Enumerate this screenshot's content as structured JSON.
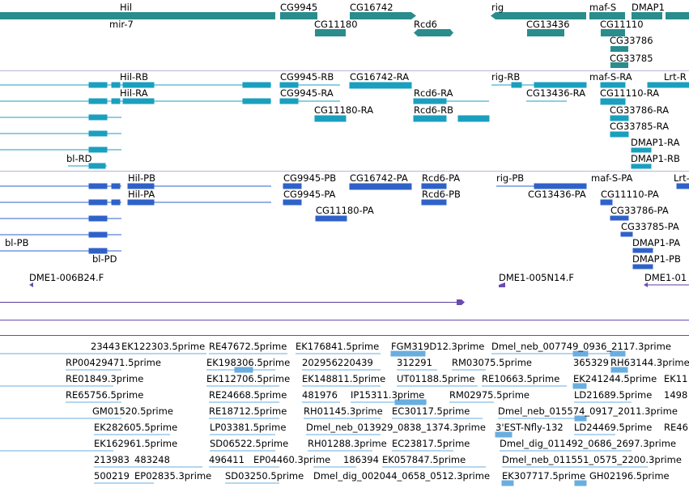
{
  "colors": {
    "gene": "#2a8c8c",
    "transcript": "#1a9fbf",
    "protein": "#2f62c8",
    "clone": "#6a4bb0",
    "clone_line": "#5a3ca0",
    "est": "#6aaee0",
    "separator": "#8c8cd0"
  },
  "tracks": {
    "genes": {
      "labels": [
        "Hil",
        "mir-7",
        "CG9945",
        "CG11180",
        "CG16742",
        "Rcd6",
        "rig",
        "CG13436",
        "maf-S",
        "CG11110",
        "DMAP1",
        "CG33786",
        "CG33785"
      ]
    },
    "transcripts": {
      "labels": [
        "Hil-RB",
        "Hil-RA",
        "CG9945-RB",
        "CG9945-RA",
        "CG11180-RA",
        "CG16742-RA",
        "Rcd6-RA",
        "Rcd6-RB",
        "rig-RB",
        "CG13436-RA",
        "maf-S-RA",
        "CG11110-RA",
        "Lrt-R",
        "CG33786-RA",
        "CG33785-RA",
        "DMAP1-RA",
        "DMAP1-RB",
        "bl-RD"
      ]
    },
    "proteins": {
      "labels": [
        "Hil-PB",
        "Hil-PA",
        "CG9945-PB",
        "CG9945-PA",
        "CG11180-PA",
        "CG16742-PA",
        "Rcd6-PA",
        "Rcd6-PB",
        "rig-PB",
        "CG13436-PA",
        "maf-S-PA",
        "CG11110-PA",
        "Lrt-",
        "CG33786-PA",
        "CG33785-PA",
        "DMAP1-PA",
        "DMAP1-PB",
        "bl-PB",
        "bl-PD"
      ]
    },
    "clones": {
      "labels": [
        "DME1-006B24.F",
        "DME1-005N14.F",
        "DME1-01"
      ]
    },
    "ests": {
      "labels": [
        "23443",
        "EK122303.5prime",
        "RE47672.5prime",
        "EK176841.5prime",
        "FGM319D12.3prime",
        "Dmel_neb_007749_0936_2117.3prime",
        "RP00429471.5prime",
        "EK198306.5prime",
        "202956220439",
        "312291",
        "RM03075.5prime",
        "365329",
        "RH63144.3prime",
        "RE01849.3prime",
        "EK112706.5prime",
        "EK148811.5prime",
        "UT01188.5prime",
        "RE10663.5prime",
        "EK241244.5prime",
        "EK11",
        "RE65756.5prime",
        "RE24668.5prime",
        "481976",
        "IP15311.3prime",
        "RM02975.5prime",
        "LD21689.5prime",
        "1498",
        "GM01520.5prime",
        "RE18712.5prime",
        "RH01145.3prime",
        "EC30117.5prime",
        "Dmel_neb_015574_0917_2011.3prime",
        "EK282605.5prime",
        "LP03381.5prime",
        "Dmel_neb_013929_0838_1374.3prime",
        "3'EST-Nfly-132",
        "LD24469.5prime",
        "RE46",
        "EK162961.5prime",
        "SD06522.5prime",
        "RH01288.3prime",
        "EC23817.5prime",
        "Dmel_dig_011492_0686_2697.3prime",
        "213983",
        "483248",
        "496411",
        "EP04460.3prime",
        "186394",
        "EK057847.5prime",
        "Dmel_neb_011551_0575_2200.3prime",
        "500219",
        "EP02835.3prime",
        "SD03250.5prime",
        "Dmel_dig_002044_0658_0512.3prime",
        "EK307717.5prime",
        "GH02196.5prime"
      ]
    }
  }
}
